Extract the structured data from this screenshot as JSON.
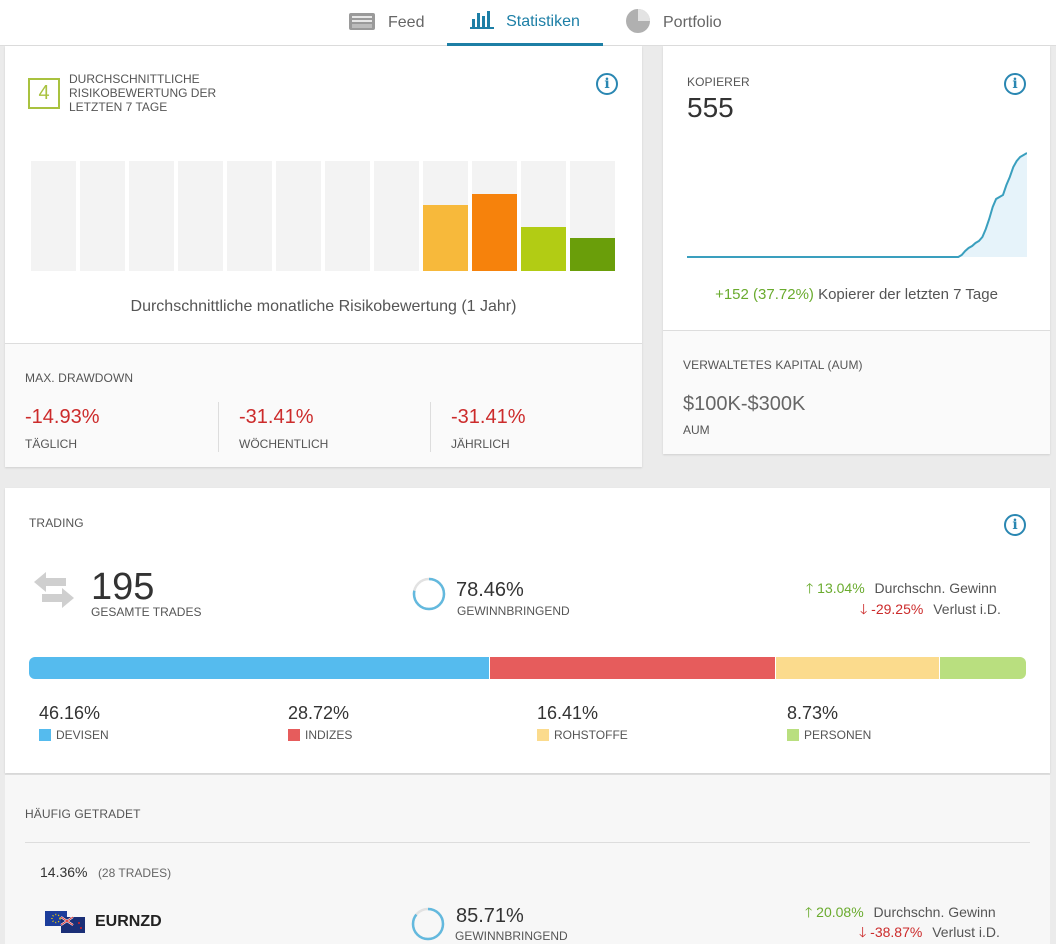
{
  "tabs": [
    {
      "label": "Feed",
      "icon": "feed-icon"
    },
    {
      "label": "Statistiken",
      "icon": "bar-chart-icon"
    },
    {
      "label": "Portfolio",
      "icon": "pie-chart-icon"
    }
  ],
  "risk": {
    "score": "4",
    "title": "DURCHSCHNITTLICHE RISIKOBEWERTUNG DER LETZTEN 7 TAGE",
    "caption": "Durchschnittliche monatliche Risikobewertung (1 Jahr)",
    "bars": [
      {
        "level": 0,
        "color": "#f3f3f3"
      },
      {
        "level": 0,
        "color": "#f3f3f3"
      },
      {
        "level": 0,
        "color": "#f3f3f3"
      },
      {
        "level": 0,
        "color": "#f3f3f3"
      },
      {
        "level": 0,
        "color": "#f3f3f3"
      },
      {
        "level": 0,
        "color": "#f3f3f3"
      },
      {
        "level": 0,
        "color": "#f3f3f3"
      },
      {
        "level": 0,
        "color": "#f3f3f3"
      },
      {
        "level": 0.6,
        "color": "#f7b93b"
      },
      {
        "level": 0.7,
        "color": "#f6820c"
      },
      {
        "level": 0.4,
        "color": "#b2cc14"
      },
      {
        "level": 0.3,
        "color": "#6a9e0a"
      }
    ]
  },
  "drawdown": {
    "title": "MAX. DRAWDOWN",
    "items": [
      {
        "value": "-14.93%",
        "label": "TÄGLICH"
      },
      {
        "value": "-31.41%",
        "label": "WÖCHENTLICH"
      },
      {
        "value": "-31.41%",
        "label": "JÄHRLICH"
      }
    ]
  },
  "copiers": {
    "title": "KOPIERER",
    "count": "555",
    "change": "+152 (37.72%)",
    "change_label": "Kopierer der letzten 7 Tage",
    "series": [
      0,
      0,
      0,
      0,
      0,
      0,
      0,
      0,
      0,
      0,
      0,
      0,
      0,
      0,
      0,
      0,
      0,
      0,
      0,
      0,
      0,
      0,
      0,
      0,
      0,
      0,
      0,
      0,
      0,
      0,
      0,
      0,
      0,
      0,
      0,
      0,
      0,
      0,
      0,
      0,
      0,
      0,
      0,
      0,
      0,
      0,
      0,
      0,
      0,
      0,
      0,
      0,
      0,
      0,
      0,
      0,
      0,
      0,
      0,
      0,
      0,
      0,
      0,
      0,
      0,
      0,
      0,
      0,
      0,
      0,
      0,
      0,
      0,
      0,
      0,
      0,
      0,
      0,
      0,
      0,
      2,
      6,
      9,
      11,
      14,
      16,
      20,
      28,
      38,
      50,
      58,
      60,
      62,
      72,
      80,
      90,
      96,
      100,
      102,
      104
    ]
  },
  "aum": {
    "title": "VERWALTETES KAPITAL (AUM)",
    "value": "$100K-$300K",
    "label": "AUM"
  },
  "trading": {
    "title": "TRADING",
    "total": "195",
    "total_label": "GESAMTE TRADES",
    "profitable_pct": "78.46%",
    "profitable_label": "GEWINNBRINGEND",
    "profitable_fraction": 0.7846,
    "avg_gain": "13.04%",
    "avg_gain_label": "Durchschn. Gewinn",
    "avg_loss": "-29.25%",
    "avg_loss_label": "Verlust i.D.",
    "allocation": [
      {
        "pct": "46.16%",
        "label": "DEVISEN",
        "value": 46.16,
        "color": "#55bbee"
      },
      {
        "pct": "28.72%",
        "label": "INDIZES",
        "value": 28.72,
        "color": "#e65c5c"
      },
      {
        "pct": "16.41%",
        "label": "ROHSTOFFE",
        "value": 16.41,
        "color": "#fbdb8d"
      },
      {
        "pct": "8.73%",
        "label": "PERSONEN",
        "value": 8.73,
        "color": "#b9df7f"
      }
    ]
  },
  "frequent": {
    "title": "HÄUFIG GETRADET",
    "share": "14.36%",
    "trades": "(28 TRADES)",
    "instrument": "EURNZD",
    "profitable_pct": "85.71%",
    "profitable_label": "GEWINNBRINGEND",
    "profitable_fraction": 0.8571,
    "avg_gain": "20.08%",
    "avg_gain_label": "Durchschn. Gewinn",
    "avg_loss": "-38.87%",
    "avg_loss_label": "Verlust i.D."
  }
}
